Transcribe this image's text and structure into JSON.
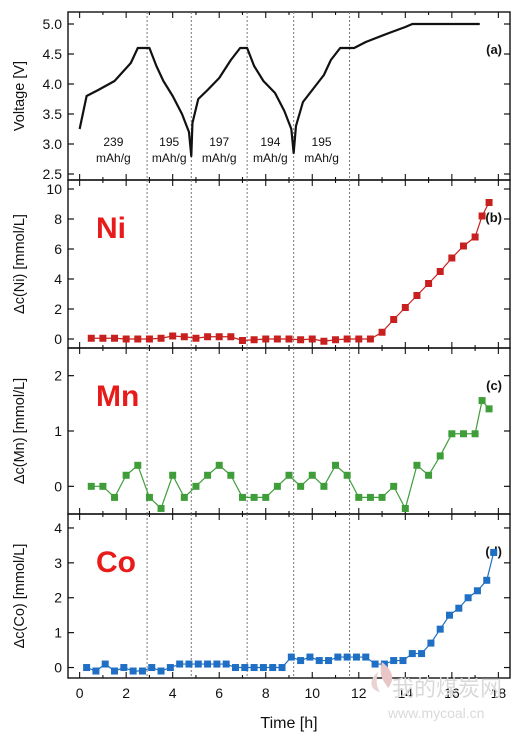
{
  "chart_data": [
    {
      "type": "line",
      "panel_label": "(a)",
      "ylabel": "Voltage [V]",
      "ylim": [
        2.4,
        5.2
      ],
      "yticks": [
        "2.5",
        "3.0",
        "3.5",
        "4.0",
        "4.5",
        "5.0"
      ],
      "xlim": [
        -0.5,
        18.5
      ],
      "series": [
        {
          "color": "#111111",
          "x": [
            0.0,
            0.3,
            0.8,
            1.5,
            2.2,
            2.5,
            3.0,
            3.3,
            3.6,
            4.0,
            4.4,
            4.7,
            4.8,
            4.85,
            5.1,
            5.5,
            6.0,
            6.5,
            6.9,
            7.2,
            7.5,
            7.9,
            8.4,
            8.8,
            9.1,
            9.2,
            9.3,
            9.6,
            10.0,
            10.5,
            10.8,
            11.2,
            11.8,
            12.3,
            13.3,
            14.0,
            14.3,
            15.5,
            17.2
          ],
          "y": [
            3.25,
            3.8,
            3.9,
            4.05,
            4.35,
            4.6,
            4.6,
            4.3,
            4.05,
            3.8,
            3.5,
            3.2,
            2.8,
            3.35,
            3.75,
            3.9,
            4.1,
            4.4,
            4.6,
            4.6,
            4.3,
            4.05,
            3.85,
            3.55,
            3.25,
            2.85,
            3.3,
            3.7,
            3.9,
            4.15,
            4.4,
            4.6,
            4.6,
            4.7,
            4.85,
            4.95,
            5.0,
            5.0,
            5.0
          ]
        }
      ],
      "vlines_x": [
        2.9,
        4.8,
        7.2,
        9.2,
        11.6
      ],
      "capacity_labels": [
        {
          "value": "239",
          "unit": "mAh/g",
          "x": 1.45
        },
        {
          "value": "195",
          "unit": "mAh/g",
          "x": 3.85
        },
        {
          "value": "197",
          "unit": "mAh/g",
          "x": 6.0
        },
        {
          "value": "194",
          "unit": "mAh/g",
          "x": 8.2
        },
        {
          "value": "195",
          "unit": "mAh/g",
          "x": 10.4
        }
      ]
    },
    {
      "type": "line",
      "panel_label": "(b)",
      "element_label": "Ni",
      "ylabel": "Δc(Ni) [mmol/L]",
      "ylim": [
        -0.6,
        10.6
      ],
      "yticks": [
        "0",
        "2",
        "4",
        "6",
        "8",
        "10"
      ],
      "xlim": [
        -0.5,
        18.5
      ],
      "series": [
        {
          "color": "#c8201f",
          "x": [
            0.5,
            1.0,
            1.5,
            2.0,
            2.5,
            3.0,
            3.5,
            4.0,
            4.5,
            5.0,
            5.5,
            6.0,
            6.5,
            7.0,
            7.5,
            8.0,
            8.5,
            9.0,
            9.5,
            10.0,
            10.5,
            11.0,
            11.5,
            12.0,
            12.5,
            13.0,
            13.5,
            14.0,
            14.5,
            15.0,
            15.5,
            16.0,
            16.5,
            17.0
          ],
          "y": [
            0.05,
            0.05,
            0.05,
            0.0,
            0.0,
            0.0,
            0.05,
            0.2,
            0.15,
            0.05,
            0.15,
            0.15,
            0.15,
            -0.1,
            -0.05,
            0.0,
            0.0,
            0.0,
            -0.05,
            0.0,
            -0.15,
            -0.05,
            0.0,
            0.0,
            0.0,
            0.45,
            1.3,
            2.1,
            2.9,
            3.7,
            4.5,
            5.4,
            6.2,
            6.8
          ]
        }
      ],
      "series_extra": [
        {
          "x": [
            17.3,
            17.6
          ],
          "y": [
            8.2,
            9.1
          ]
        }
      ],
      "vlines_x": [
        2.9,
        4.8,
        7.2,
        9.2,
        11.6
      ]
    },
    {
      "type": "line",
      "panel_label": "(c)",
      "element_label": "Mn",
      "ylabel": "Δc(Mn) [mmol/L]",
      "ylim": [
        -0.5,
        2.5
      ],
      "yticks": [
        "0",
        "1",
        "2"
      ],
      "xlim": [
        -0.5,
        18.5
      ],
      "series": [
        {
          "color": "#3f9e3a",
          "x": [
            0.5,
            1.0,
            1.5,
            2.0,
            2.5,
            3.0,
            3.5,
            4.0,
            4.5,
            5.0,
            5.5,
            6.0,
            6.5,
            7.0,
            7.5,
            8.0,
            8.5,
            9.0,
            9.5,
            10.0,
            10.5,
            11.0,
            11.5,
            12.0,
            12.5,
            13.0,
            13.5,
            14.0,
            14.5,
            15.0,
            15.5,
            16.0,
            16.5,
            17.0,
            17.3,
            17.6
          ],
          "y": [
            0.0,
            0.0,
            -0.2,
            0.2,
            0.38,
            -0.2,
            -0.4,
            0.2,
            -0.2,
            0.0,
            0.2,
            0.38,
            0.2,
            -0.2,
            -0.2,
            -0.2,
            0.0,
            0.2,
            0.0,
            0.2,
            0.0,
            0.38,
            0.2,
            -0.2,
            -0.2,
            -0.2,
            0.0,
            -0.4,
            0.38,
            0.2,
            0.55,
            0.95,
            0.95,
            0.95,
            1.55,
            1.4
          ]
        }
      ],
      "vlines_x": [
        2.9,
        4.8,
        7.2,
        9.2,
        11.6
      ]
    },
    {
      "type": "line",
      "panel_label": "(d)",
      "element_label": "Co",
      "ylabel": "Δc(Co) [mmol/L]",
      "ylim": [
        -0.3,
        4.4
      ],
      "yticks": [
        "0",
        "1",
        "2",
        "3",
        "4"
      ],
      "xlim": [
        -0.5,
        18.5
      ],
      "xlabel": "Time [h]",
      "xticks": [
        "0",
        "2",
        "4",
        "6",
        "8",
        "10",
        "12",
        "14",
        "16",
        "18"
      ],
      "series": [
        {
          "color": "#1f6fc4",
          "x": [
            0.3,
            0.7,
            1.1,
            1.5,
            1.9,
            2.3,
            2.7,
            3.1,
            3.5,
            3.9,
            4.3,
            4.7,
            5.1,
            5.5,
            5.9,
            6.3,
            6.7,
            7.1,
            7.5,
            7.9,
            8.3,
            8.7,
            9.1,
            9.5,
            9.9,
            10.3,
            10.7,
            11.1,
            11.5,
            11.9,
            12.3,
            12.7,
            13.1,
            13.5,
            13.9,
            14.3,
            14.7,
            15.1,
            15.5,
            15.9,
            16.3,
            16.7,
            17.1,
            17.5
          ],
          "y": [
            0.0,
            -0.1,
            0.1,
            -0.1,
            0.0,
            -0.1,
            -0.1,
            0.0,
            -0.1,
            0.0,
            0.1,
            0.1,
            0.1,
            0.1,
            0.1,
            0.1,
            0.0,
            0.0,
            0.0,
            0.0,
            0.0,
            0.0,
            0.3,
            0.2,
            0.3,
            0.2,
            0.2,
            0.3,
            0.3,
            0.3,
            0.3,
            0.1,
            0.1,
            0.2,
            0.2,
            0.4,
            0.4,
            0.7,
            1.1,
            1.5,
            1.7,
            2.0,
            2.2,
            2.5
          ]
        }
      ],
      "series_extra": [
        {
          "x": [
            17.8
          ],
          "y": [
            3.3
          ]
        }
      ],
      "vlines_x": [
        2.9,
        4.8,
        7.2,
        9.2,
        11.6
      ]
    }
  ],
  "watermark": {
    "text_cn": "我的煤炭网",
    "url": "www.mycoal.cn"
  }
}
